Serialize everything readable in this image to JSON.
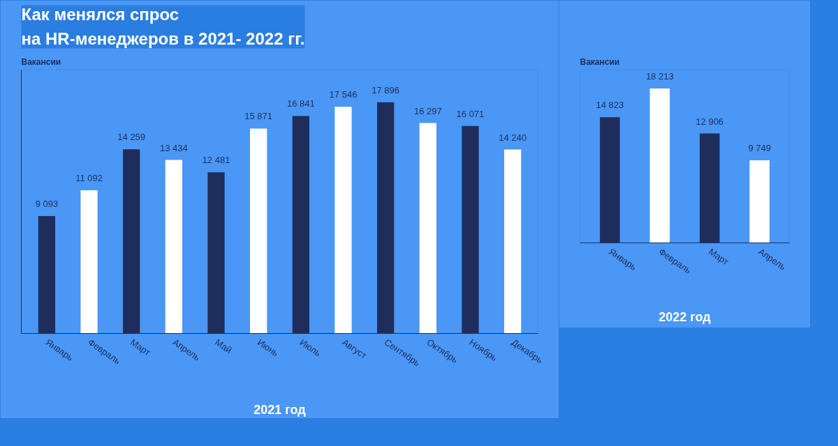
{
  "chart_data": [
    {
      "type": "bar",
      "title": "Как менялся спрос\nна HR-менеджеров в 2021- 2022 гг.",
      "ylabel": "Вакансии",
      "xlabel": "2021 год",
      "categories": [
        "Январь",
        "Февраль",
        "Март",
        "Апрель",
        "Май",
        "Июнь",
        "Июль",
        "Август",
        "Сентябрь",
        "Октябрь",
        "Ноябрь",
        "Декабрь"
      ],
      "values": [
        9093,
        11092,
        14259,
        13434,
        12481,
        15871,
        16841,
        17546,
        17896,
        16297,
        16071,
        14240
      ],
      "value_labels": [
        "9 093",
        "11 092",
        "14 259",
        "13 434",
        "12 481",
        "15 871",
        "16 841",
        "17 546",
        "17 896",
        "16 297",
        "16 071",
        "14 240"
      ],
      "colors": [
        "#1f2d5c",
        "#ffffff",
        "#1f2d5c",
        "#ffffff",
        "#1f2d5c",
        "#ffffff",
        "#1f2d5c",
        "#ffffff",
        "#1f2d5c",
        "#ffffff",
        "#1f2d5c",
        "#ffffff"
      ],
      "grid": false,
      "tick_labels": "x"
    },
    {
      "type": "bar",
      "ylabel": "Вакансии",
      "xlabel": "2022 год",
      "categories": [
        "Январь",
        "Февраль",
        "Март",
        "Апрель"
      ],
      "values": [
        14823,
        18213,
        12906,
        9749
      ],
      "value_labels": [
        "14 823",
        "18 213",
        "12 906",
        "9 749"
      ],
      "colors": [
        "#1f2d5c",
        "#ffffff",
        "#1f2d5c",
        "#ffffff"
      ],
      "grid": false,
      "tick_labels": "x"
    }
  ]
}
